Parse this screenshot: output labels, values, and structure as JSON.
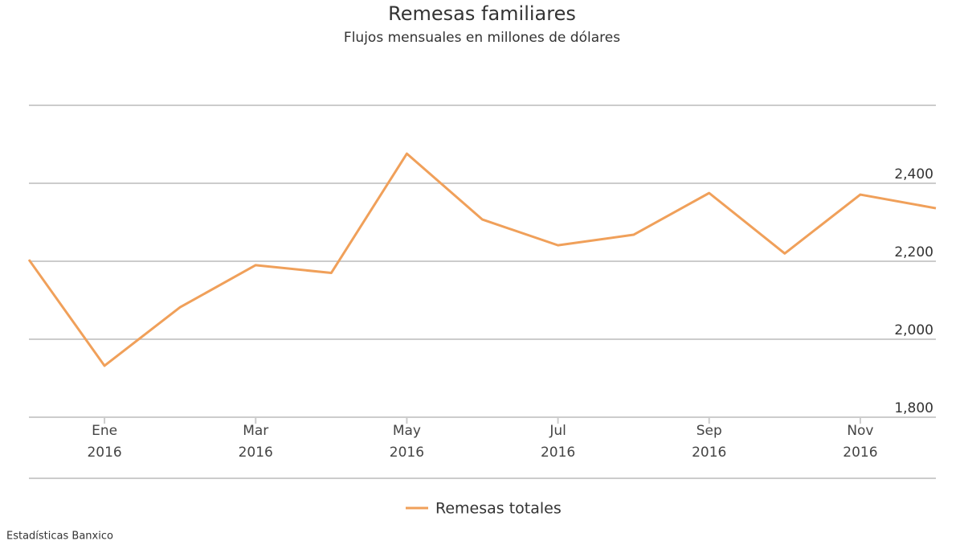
{
  "chart_data": {
    "type": "line",
    "title": "Remesas familiares",
    "subtitle": "Flujos mensuales en millones de dólares",
    "source": "Estadísticas Banxico",
    "categories": [
      null,
      "Ene 2016",
      null,
      "Mar 2016",
      null,
      "May 2016",
      null,
      "Jul 2016",
      null,
      "Sep 2016",
      null,
      "Nov 2016",
      null
    ],
    "series": [
      {
        "name": "Remesas totales",
        "color": "#f0a05a",
        "values": [
          2204,
          1932,
          2082,
          2190,
          2170,
          2476,
          2307,
          2241,
          2268,
          2375,
          2220,
          2371,
          2336
        ]
      }
    ],
    "ylim": [
      1800,
      2600
    ],
    "yticks": [
      {
        "value": 1800,
        "label": "1,800"
      },
      {
        "value": 2000,
        "label": "2,000"
      },
      {
        "value": 2200,
        "label": "2,200"
      },
      {
        "value": 2400,
        "label": "2,400"
      }
    ],
    "grid": true,
    "legend": "bottom"
  }
}
